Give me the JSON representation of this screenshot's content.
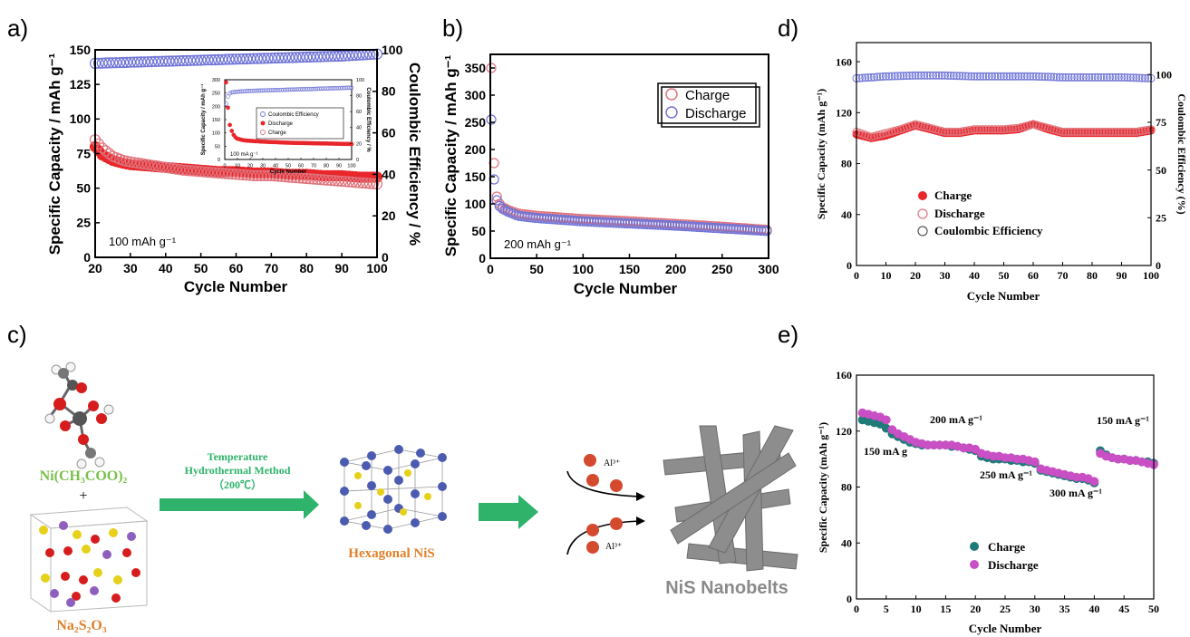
{
  "panel_labels": {
    "a": "a)",
    "b": "b)",
    "c": "c)",
    "d": "d)",
    "e": "e)"
  },
  "colors": {
    "red": "#e8262b",
    "red_open": "#e0737b",
    "blue_open": "#6f74d6",
    "blue_fill": "#5b56c8",
    "teal": "#1f7b78",
    "magenta": "#c94fc4",
    "green_arrow": "#2fb36a",
    "gray_belt": "#8d8d8d",
    "sulfur": "#e6d11a",
    "nickel": "#4b5bb0",
    "oxygen": "#d61c1c",
    "sodium": "#8f5fbf"
  },
  "chart_data": [
    {
      "id": "a",
      "type": "scatter",
      "xlabel": "Cycle Number",
      "ylabel": "Specific Capacity / mAh g⁻¹",
      "ylabel_right": "Coulombic Efficiency / %",
      "xlim": [
        20,
        100
      ],
      "ylim": [
        0,
        150
      ],
      "ylim_right": [
        0,
        100
      ],
      "xticks": [
        "20",
        "30",
        "40",
        "50",
        "60",
        "70",
        "80",
        "90",
        "100"
      ],
      "yticks": [
        "0",
        "25",
        "50",
        "75",
        "100",
        "125",
        "150"
      ],
      "yticks_right": [
        "0",
        "20",
        "40",
        "60",
        "80",
        "100"
      ],
      "annotation": "100 mAh g⁻¹",
      "series": [
        {
          "style": "filled-red",
          "x": [
            20,
            22,
            25,
            28,
            30,
            35,
            40,
            45,
            50,
            55,
            60,
            65,
            70,
            75,
            80,
            85,
            90,
            95,
            100
          ],
          "y": [
            80,
            74,
            70,
            68,
            67,
            66,
            65,
            64,
            63,
            62,
            62,
            61,
            61,
            60,
            60,
            59,
            59,
            58,
            58
          ]
        },
        {
          "style": "open-red",
          "x": [
            20,
            22,
            25,
            28,
            30,
            35,
            40,
            45,
            50,
            55,
            60,
            65,
            70,
            75,
            80,
            85,
            90,
            95,
            100
          ],
          "y": [
            85,
            79,
            73,
            70,
            69,
            67,
            65,
            63,
            62,
            61,
            60,
            59,
            59,
            58,
            57,
            56,
            55,
            54,
            53
          ]
        },
        {
          "style": "open-blue",
          "x": [
            20,
            30,
            40,
            50,
            60,
            70,
            80,
            90,
            100
          ],
          "y": [
            93.5,
            94,
            94.5,
            95,
            95.5,
            96,
            96.5,
            97,
            98
          ]
        }
      ],
      "inset": {
        "xlabel": "Cycle Number",
        "ylabel": "Specific Capacity / mAh g⁻¹",
        "ylabel_right": "Coulombic Efficiency / %",
        "xlim": [
          0,
          100
        ],
        "ylim": [
          0,
          300
        ],
        "ylim_right": [
          0,
          100
        ],
        "xticks": [
          "0",
          "10",
          "20",
          "30",
          "40",
          "50",
          "60",
          "70",
          "80",
          "90",
          "100"
        ],
        "yticks": [
          "0",
          "50",
          "100",
          "150",
          "200",
          "250",
          "300"
        ],
        "yticks_right": [
          "0",
          "20",
          "40",
          "60",
          "80",
          "100"
        ],
        "annotation": "100 mA g⁻¹",
        "legend": [
          "Coulombic Efficiency",
          "Discharge",
          "Charge"
        ],
        "series": [
          {
            "style": "filled-red",
            "x": [
              1,
              2,
              3,
              4,
              6,
              8,
              10,
              15,
              20,
              30,
              40,
              50,
              60,
              70,
              80,
              90,
              100
            ],
            "y": [
              290,
              220,
              170,
              130,
              100,
              85,
              78,
              72,
              70,
              67,
              65,
              63,
              62,
              61,
              60,
              59,
              58
            ]
          },
          {
            "style": "open-blue",
            "x": [
              1,
              3,
              5,
              10,
              20,
              40,
              60,
              80,
              100
            ],
            "y": [
              70,
              82,
              84,
              85,
              86,
              87,
              88,
              89,
              90
            ]
          }
        ]
      }
    },
    {
      "id": "b",
      "type": "scatter",
      "xlabel": "Cycle Number",
      "ylabel": "Specific Capacity / mAh g⁻¹",
      "xlim": [
        0,
        300
      ],
      "ylim": [
        0,
        375
      ],
      "xticks": [
        "0",
        "50",
        "100",
        "150",
        "200",
        "250",
        "300"
      ],
      "yticks": [
        "0",
        "50",
        "100",
        "150",
        "200",
        "250",
        "300",
        "350"
      ],
      "annotation": "200 mAh g⁻¹",
      "legend": [
        "Charge",
        "Discharge"
      ],
      "series": [
        {
          "name": "Charge",
          "style": "open-red",
          "x": [
            1,
            2,
            3,
            5,
            8,
            12,
            20,
            30,
            50,
            100,
            150,
            200,
            250,
            300
          ],
          "y": [
            350,
            270,
            220,
            130,
            105,
            95,
            88,
            82,
            78,
            72,
            68,
            63,
            58,
            52
          ]
        },
        {
          "name": "Discharge",
          "style": "open-blue",
          "x": [
            1,
            2,
            3,
            5,
            8,
            12,
            20,
            30,
            50,
            100,
            150,
            200,
            250,
            300
          ],
          "y": [
            255,
            210,
            170,
            120,
            100,
            92,
            85,
            78,
            74,
            68,
            64,
            60,
            55,
            50
          ]
        }
      ]
    },
    {
      "id": "d",
      "type": "scatter",
      "xlabel": "Cycle Number",
      "ylabel": "Specific Capacity (mAh g⁻¹)",
      "ylabel_right": "Coulombic Efficiency (%)",
      "xlim": [
        0,
        100
      ],
      "ylim": [
        0,
        175
      ],
      "ylim_right": [
        0,
        116.7
      ],
      "xticks": [
        "0",
        "10",
        "20",
        "30",
        "40",
        "50",
        "60",
        "70",
        "80",
        "90",
        "100"
      ],
      "yticks": [
        "0",
        "40",
        "80",
        "120",
        "160"
      ],
      "yticks_right": [
        "0",
        "25",
        "50",
        "75",
        "100"
      ],
      "legend": [
        "Charge",
        "Discharge",
        "Coulombic Efficiency"
      ],
      "series": [
        {
          "name": "Charge",
          "style": "filled-red",
          "x": [
            0,
            5,
            10,
            15,
            20,
            25,
            30,
            35,
            40,
            45,
            50,
            55,
            60,
            65,
            70,
            75,
            80,
            85,
            90,
            95,
            100
          ],
          "y": [
            103,
            100,
            102,
            106,
            110,
            107,
            104,
            104,
            106,
            106,
            106,
            107,
            111,
            107,
            104,
            104,
            104,
            104,
            104,
            104,
            106
          ]
        },
        {
          "name": "Discharge",
          "style": "open-red",
          "x": [
            0,
            5,
            10,
            15,
            20,
            25,
            30,
            35,
            40,
            45,
            50,
            55,
            60,
            65,
            70,
            75,
            80,
            85,
            90,
            95,
            100
          ],
          "y": [
            105,
            101,
            104,
            107,
            111,
            108,
            105,
            105,
            107,
            107,
            107,
            108,
            111,
            108,
            105,
            105,
            105,
            105,
            105,
            105,
            107
          ]
        },
        {
          "name": "Coulombic Efficiency",
          "style": "open-blue",
          "x": [
            0,
            10,
            20,
            30,
            40,
            50,
            60,
            70,
            80,
            90,
            100
          ],
          "y": [
            98,
            99,
            99.5,
            99.5,
            99,
            99,
            99,
            98.5,
            98.5,
            98.5,
            98
          ]
        }
      ]
    },
    {
      "id": "e",
      "type": "scatter",
      "xlabel": "Cycle Number",
      "ylabel": "Specific Capacity (mAh g⁻¹)",
      "xlim": [
        0,
        50
      ],
      "ylim": [
        0,
        160
      ],
      "xticks": [
        "0",
        "5",
        "10",
        "15",
        "20",
        "25",
        "30",
        "35",
        "40",
        "45",
        "50"
      ],
      "yticks": [
        "0",
        "40",
        "80",
        "120",
        "160"
      ],
      "legend": [
        "Charge",
        "Discharge"
      ],
      "annotations": [
        "150 mA g",
        "200 mA g⁻¹",
        "250 mA g⁻¹",
        "300 mA g⁻¹",
        "150 mA g⁻¹"
      ],
      "series": [
        {
          "name": "Charge",
          "style": "teal",
          "x": [
            1,
            2,
            3,
            4,
            5,
            6,
            7,
            8,
            9,
            10,
            11,
            12,
            13,
            14,
            15,
            16,
            17,
            18,
            19,
            20,
            21,
            22,
            23,
            24,
            25,
            26,
            27,
            28,
            29,
            30,
            31,
            32,
            33,
            34,
            35,
            36,
            37,
            38,
            39,
            40,
            41,
            42,
            43,
            44,
            45,
            46,
            47,
            48,
            49,
            50
          ],
          "y": [
            128,
            127,
            126,
            125,
            122,
            118,
            116,
            114,
            112,
            111,
            110,
            110,
            110,
            110,
            110,
            109,
            109,
            108,
            107,
            106,
            102,
            101,
            100,
            100,
            100,
            99,
            99,
            98,
            98,
            97,
            92,
            91,
            90,
            89,
            88,
            87,
            86,
            86,
            85,
            83,
            106,
            103,
            101,
            100,
            100,
            99,
            99,
            98,
            98,
            97
          ]
        },
        {
          "name": "Discharge",
          "style": "magenta",
          "x": [
            1,
            2,
            3,
            4,
            5,
            6,
            7,
            8,
            9,
            10,
            11,
            12,
            13,
            14,
            15,
            16,
            17,
            18,
            19,
            20,
            21,
            22,
            23,
            24,
            25,
            26,
            27,
            28,
            29,
            30,
            31,
            32,
            33,
            34,
            35,
            36,
            37,
            38,
            39,
            40,
            41,
            42,
            43,
            44,
            45,
            46,
            47,
            48,
            49,
            50
          ],
          "y": [
            133,
            132,
            131,
            130,
            128,
            121,
            118,
            116,
            114,
            112,
            111,
            110,
            110,
            110,
            110,
            110,
            109,
            108,
            108,
            107,
            104,
            103,
            102,
            102,
            101,
            101,
            100,
            100,
            99,
            98,
            93,
            92,
            91,
            90,
            89,
            88,
            87,
            87,
            86,
            84,
            104,
            102,
            101,
            100,
            100,
            99,
            99,
            98,
            97,
            96
          ]
        }
      ]
    }
  ],
  "schematic": {
    "precursor_label": "Ni(CH₃COO)₂",
    "plus": "+",
    "salt_label": "Na₂S₂O₃",
    "arrow_text_1": "Temperature",
    "arrow_text_2": "Hydrothermal Method",
    "arrow_text_3": "（200℃）",
    "product_label": "Hexagonal NiS",
    "ion_label_top": "Al³⁺",
    "ion_label_bottom": "Al³⁺",
    "final_label": "NiS Nanobelts"
  }
}
